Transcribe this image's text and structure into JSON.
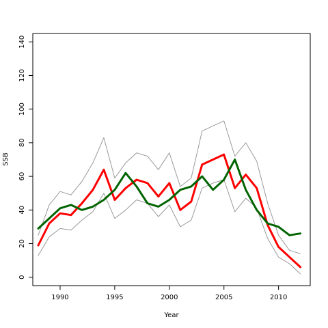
{
  "chart_data": {
    "type": "line",
    "title": "",
    "xlabel": "Year",
    "ylabel": "SSB",
    "xlim": [
      1987.5,
      2012.9
    ],
    "ylim": [
      -5,
      145
    ],
    "xticks": [
      1990,
      1995,
      2000,
      2005,
      2010
    ],
    "yticks": [
      0,
      20,
      40,
      60,
      80,
      100,
      120,
      140
    ],
    "x": [
      1988,
      1989,
      1990,
      1991,
      1992,
      1993,
      1994,
      1995,
      1996,
      1997,
      1998,
      1999,
      2000,
      2001,
      2002,
      2003,
      2004,
      2005,
      2006,
      2007,
      2008,
      2009,
      2010,
      2011,
      2012
    ],
    "series": [
      {
        "color": "#999999",
        "width": 1,
        "values": [
          13,
          24,
          29,
          28,
          34,
          39,
          50,
          35,
          40,
          46,
          44,
          36,
          43,
          30,
          34,
          53,
          56,
          58,
          39,
          47,
          41,
          23,
          12,
          8,
          2
        ]
      },
      {
        "color": "#999999",
        "width": 1,
        "values": [
          25,
          43,
          51,
          49,
          57,
          68,
          83,
          59,
          68,
          74,
          72,
          64,
          74,
          54,
          59,
          87,
          90,
          93,
          72,
          80,
          69,
          44,
          25,
          16,
          14
        ]
      },
      {
        "color": "#ff0000",
        "width": 3,
        "values": [
          19,
          32,
          38,
          37,
          44,
          52,
          64,
          46,
          53,
          58,
          56,
          48,
          56,
          40,
          45,
          67,
          70,
          73,
          53,
          61,
          53,
          31,
          18,
          12,
          6
        ]
      },
      {
        "color": "#006400",
        "width": 3,
        "values": [
          29,
          35,
          41,
          43,
          40,
          42,
          46,
          52,
          62,
          54,
          44,
          42,
          46,
          52,
          54,
          60,
          52,
          58,
          70,
          52,
          40,
          32,
          30,
          25,
          26
        ]
      }
    ]
  }
}
